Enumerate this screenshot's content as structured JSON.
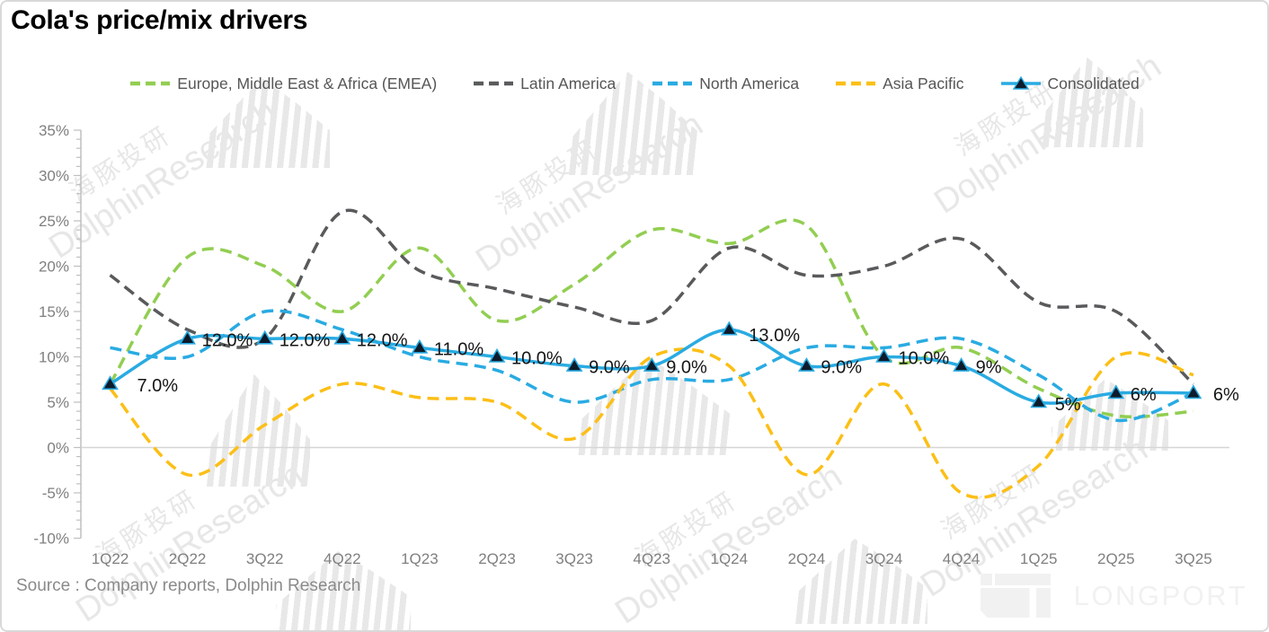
{
  "title": "Cola's price/mix drivers",
  "source": "Source : Company reports, Dolphin Research",
  "brand": "LONGPORT",
  "watermark": {
    "cn": "海豚投研",
    "en": "DolphinResearch"
  },
  "colors": {
    "emea_green": "#92ce51",
    "latam_gray": "#595a5c",
    "na_blue": "#29abe2",
    "ap_yellow": "#fcbf16",
    "consolidated_blue": "#29abe2",
    "marker_fill": "#0d1b2a",
    "axis_gray": "#bfbfbf",
    "tick_label_gray": "#7f7f7f",
    "zero_line_gray": "#d6d6d6",
    "data_label_black": "#151515"
  },
  "chart_data": {
    "type": "line",
    "title": "Cola's price/mix drivers",
    "categories": [
      "1Q22",
      "2Q22",
      "3Q22",
      "4Q22",
      "1Q23",
      "2Q23",
      "3Q23",
      "4Q23",
      "1Q24",
      "2Q24",
      "3Q24",
      "4Q24",
      "1Q25",
      "2Q25",
      "3Q25"
    ],
    "ylim": [
      -10,
      35
    ],
    "ytick_step": 5,
    "ytick_labels": [
      "-10%",
      "-5%",
      "0%",
      "5%",
      "10%",
      "15%",
      "20%",
      "25%",
      "30%",
      "35%"
    ],
    "grid": "zero-line-only",
    "legend_position": "top",
    "series": [
      {
        "id": "emea",
        "name": "Europe, Middle East & Africa (EMEA)",
        "color": "#92ce51",
        "style": "dashed",
        "values": [
          7,
          21,
          20,
          15,
          22,
          14,
          18,
          24,
          22.5,
          24.5,
          10,
          11,
          6.5,
          3.5,
          4
        ]
      },
      {
        "id": "latin-america",
        "name": "Latin America",
        "color": "#595a5c",
        "style": "dashed",
        "values": [
          19,
          13,
          12,
          26,
          19.5,
          17.5,
          15.5,
          14,
          22,
          19,
          20,
          23,
          16,
          15,
          7
        ]
      },
      {
        "id": "north-america",
        "name": "North America",
        "color": "#29abe2",
        "style": "dashed",
        "values": [
          11,
          10,
          15,
          13,
          10,
          8.5,
          5,
          7.5,
          7.5,
          11,
          11,
          12,
          8,
          3,
          6
        ]
      },
      {
        "id": "asia-pacific",
        "name": "Asia Pacific",
        "color": "#fcbf16",
        "style": "dashed",
        "values": [
          6.5,
          -3,
          2.5,
          7,
          5.5,
          5,
          1,
          10,
          9,
          -3,
          7,
          -5,
          -2,
          10,
          8
        ]
      },
      {
        "id": "consolidated",
        "name": "Consolidated",
        "color": "#29abe2",
        "style": "solid-triangle",
        "values": [
          7,
          12,
          12,
          12,
          11,
          10,
          9,
          9,
          13,
          9,
          10,
          9,
          5,
          6,
          6
        ],
        "labels": [
          "7.0%",
          "12.0%",
          "12.0%",
          "12.0%",
          "11.0%",
          "10.0%",
          "9.0%",
          "9.0%",
          "13.0%",
          "9.0%",
          "10.0%",
          "9%",
          "5%",
          "6%",
          "6%"
        ]
      }
    ]
  }
}
